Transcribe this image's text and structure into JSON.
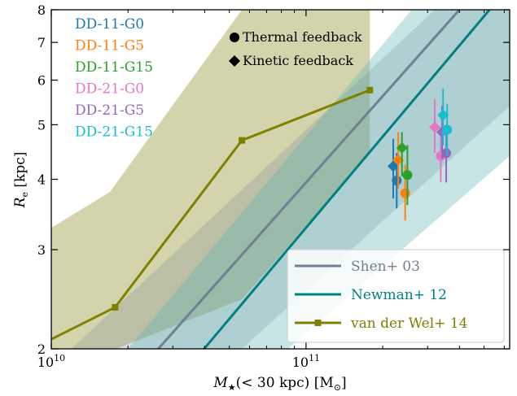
{
  "chart_data": {
    "type": "scatter",
    "xscale": "log",
    "yscale": "log",
    "xlim": [
      10000000000.0,
      630000000000.0
    ],
    "ylim": [
      2,
      8
    ],
    "xlabel": {
      "main": "M",
      "sub": "★",
      "rest": "(< 30 kpc) [M",
      "sun_sub": "⊙",
      "close": "]"
    },
    "ylabel": {
      "main": "R",
      "sub": "e",
      "rest": " [kpc]"
    },
    "x_ticks": [
      {
        "value": 10000000000.0,
        "base": "10",
        "exp": "10"
      },
      {
        "value": 100000000000.0,
        "base": "10",
        "exp": "11"
      }
    ],
    "y_ticks": [
      {
        "value": 2,
        "label": "2"
      },
      {
        "value": 3,
        "label": "3"
      },
      {
        "value": 4,
        "label": "4"
      },
      {
        "value": 5,
        "label": "5"
      },
      {
        "value": 6,
        "label": "6"
      },
      {
        "value": 7,
        "label": "7"
      },
      {
        "value": 8,
        "label": "8"
      }
    ],
    "legend_top_left": [
      {
        "name": "DD-11-G0",
        "color": "#1f77b4"
      },
      {
        "name": "DD-11-G5",
        "color": "#ff7f0e"
      },
      {
        "name": "DD-11-G15",
        "color": "#2ca02c"
      },
      {
        "name": "DD-21-G0",
        "color": "#e377c2"
      },
      {
        "name": "DD-21-G5",
        "color": "#9467bd"
      },
      {
        "name": "DD-21-G15",
        "color": "#17becf"
      }
    ],
    "marker_legend": [
      {
        "marker": "circle",
        "label": "Thermal feedback"
      },
      {
        "marker": "diamond",
        "label": "Kinetic feedback"
      }
    ],
    "legend_bottom_right": [
      {
        "name": "Shen+ 03",
        "color": "#708090",
        "marker": "none"
      },
      {
        "name": "Newman+ 12",
        "color": "#008080",
        "marker": "none"
      },
      {
        "name": "van der Wel+ 14",
        "color": "#808000",
        "marker": "square"
      }
    ],
    "relations": [
      {
        "name": "Shen+ 03",
        "color": "#708090",
        "band_color": "#708090",
        "band_opacity": 0.25,
        "line": [
          [
            26300000000.0,
            2.0
          ],
          [
            400000000000.0,
            8.0
          ]
        ],
        "band_upper": [
          [
            12000000000.0,
            2.0
          ],
          [
            320000000000.0,
            8.0
          ]
        ],
        "band_lower": [
          [
            56000000000.0,
            2.0
          ],
          [
            630000000000.0,
            5.4
          ]
        ]
      },
      {
        "name": "Newman+ 12",
        "color": "#008080",
        "band_color": "#5fb4b4",
        "band_opacity": 0.35,
        "line": [
          [
            39800000000.0,
            2.0
          ],
          [
            525000000000.0,
            8.0
          ]
        ],
        "band_upper": [
          [
            20000000000.0,
            2.0
          ],
          [
            260000000000.0,
            8.0
          ]
        ],
        "band_lower": [
          [
            85000000000.0,
            2.0
          ],
          [
            630000000000.0,
            4.4
          ]
        ]
      }
    ],
    "van_der_wel": {
      "name": "van der Wel+ 14",
      "color": "#808000",
      "band_color": "#a9a95a",
      "band_opacity": 0.5,
      "points": [
        [
          17800000000.0,
          2.37
        ],
        [
          56000000000.0,
          4.69
        ],
        [
          178000000000.0,
          5.76
        ]
      ],
      "line_start": [
        10000000000.0,
        2.08
      ],
      "band_upper": [
        [
          10000000000.0,
          3.28
        ],
        [
          17000000000.0,
          3.8
        ],
        [
          56000000000.0,
          8.0
        ],
        [
          178000000000.0,
          8.0
        ]
      ],
      "band_lower": [
        [
          18000000000.0,
          2.0
        ],
        [
          56000000000.0,
          2.45
        ],
        [
          178000000000.0,
          4.45
        ]
      ]
    },
    "simulations": [
      {
        "name": "DD-11-G0",
        "color": "#1f77b4",
        "marker": "circle",
        "x": 227000000000.0,
        "y": 3.98,
        "yerr": [
          3.55,
          4.45
        ]
      },
      {
        "name": "DD-11-G0",
        "color": "#1f77b4",
        "marker": "diamond",
        "x": 220000000000.0,
        "y": 4.22,
        "yerr": [
          3.7,
          4.72
        ]
      },
      {
        "name": "DD-11-G5",
        "color": "#ff7f0e",
        "marker": "circle",
        "x": 245000000000.0,
        "y": 3.78,
        "yerr": [
          3.38,
          4.25
        ]
      },
      {
        "name": "DD-11-G5",
        "color": "#ff7f0e",
        "marker": "diamond",
        "x": 230000000000.0,
        "y": 4.33,
        "yerr": [
          3.85,
          4.85
        ]
      },
      {
        "name": "DD-11-G15",
        "color": "#2ca02c",
        "marker": "circle",
        "x": 250000000000.0,
        "y": 4.07,
        "yerr": [
          3.6,
          4.6
        ]
      },
      {
        "name": "DD-11-G15",
        "color": "#2ca02c",
        "marker": "diamond",
        "x": 238000000000.0,
        "y": 4.55,
        "yerr": [
          4.05,
          4.85
        ]
      },
      {
        "name": "DD-21-G0",
        "color": "#e377c2",
        "marker": "circle",
        "x": 338000000000.0,
        "y": 4.4,
        "yerr": [
          3.95,
          4.95
        ]
      },
      {
        "name": "DD-21-G0",
        "color": "#e377c2",
        "marker": "diamond",
        "x": 320000000000.0,
        "y": 4.95,
        "yerr": [
          4.45,
          5.55
        ]
      },
      {
        "name": "DD-21-G5",
        "color": "#9467bd",
        "marker": "circle",
        "x": 355000000000.0,
        "y": 4.45,
        "yerr": [
          3.95,
          5.0
        ]
      },
      {
        "name": "DD-21-G5",
        "color": "#9467bd",
        "marker": "diamond",
        "x": 342000000000.0,
        "y": 4.85,
        "yerr": [
          4.35,
          5.4
        ]
      },
      {
        "name": "DD-21-G15",
        "color": "#17becf",
        "marker": "circle",
        "x": 358000000000.0,
        "y": 4.9,
        "yerr": [
          4.4,
          5.45
        ]
      },
      {
        "name": "DD-21-G15",
        "color": "#17becf",
        "marker": "diamond",
        "x": 345000000000.0,
        "y": 5.2,
        "yerr": [
          4.6,
          5.8
        ]
      }
    ]
  }
}
